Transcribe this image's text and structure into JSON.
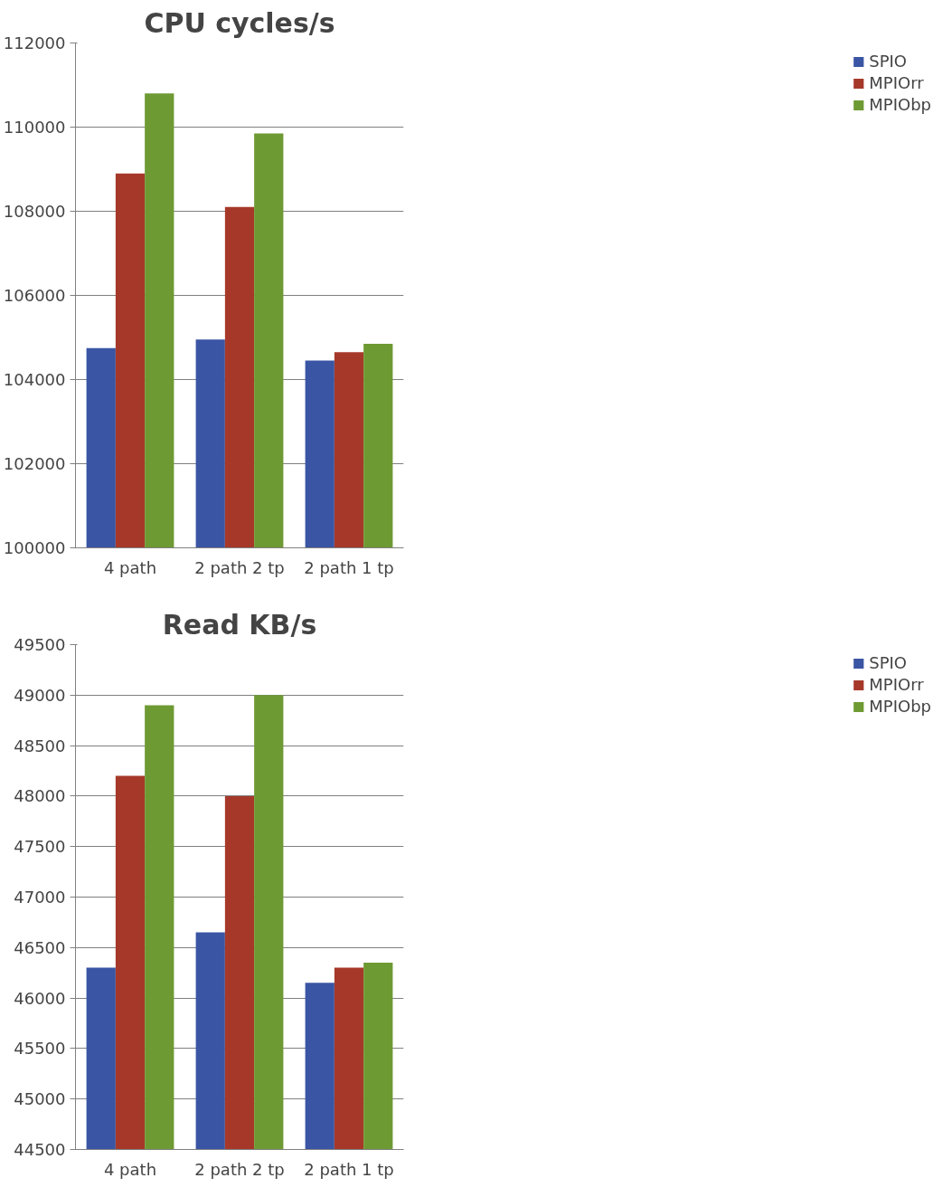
{
  "chart_data": [
    {
      "type": "bar",
      "title": "CPU cycles/s",
      "categories": [
        "4 path",
        "2 path 2 tp",
        "2 path 1 tp"
      ],
      "series": [
        {
          "name": "SPIO",
          "color": "#3a55a4",
          "values": [
            104750,
            104950,
            104450
          ]
        },
        {
          "name": "MPIOrr",
          "color": "#a6382a",
          "values": [
            108900,
            108100,
            104650
          ]
        },
        {
          "name": "MPIObp",
          "color": "#6e9a33",
          "values": [
            110800,
            109850,
            104850
          ]
        }
      ],
      "ylim": [
        100000,
        112000
      ],
      "yticks": [
        100000,
        102000,
        104000,
        106000,
        108000,
        110000,
        112000
      ],
      "grid": "y",
      "legend": "right"
    },
    {
      "type": "bar",
      "title": "Read KB/s",
      "categories": [
        "4 path",
        "2 path 2 tp",
        "2 path 1 tp"
      ],
      "series": [
        {
          "name": "SPIO",
          "color": "#3a55a4",
          "values": [
            46300,
            46650,
            46150
          ]
        },
        {
          "name": "MPIOrr",
          "color": "#a6382a",
          "values": [
            48200,
            48000,
            46300
          ]
        },
        {
          "name": "MPIObp",
          "color": "#6e9a33",
          "values": [
            48900,
            49000,
            46350
          ]
        }
      ],
      "ylim": [
        44500,
        49500
      ],
      "yticks": [
        44500,
        45000,
        45500,
        46000,
        46500,
        47000,
        47500,
        48000,
        48500,
        49000,
        49500
      ],
      "grid": "y",
      "legend": "right"
    }
  ]
}
